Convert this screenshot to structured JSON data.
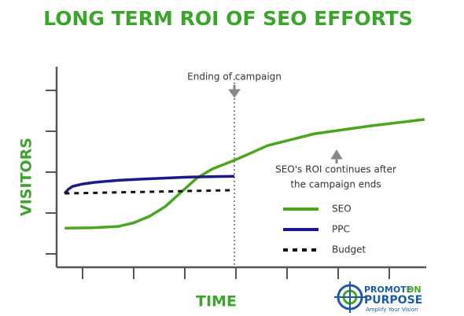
{
  "chart_data": {
    "type": "line",
    "title": "LONG TERM ROI OF SEO EFFORTS",
    "x_label": "TIME",
    "y_label": "VISITORS",
    "xlim": [
      0.5,
      7.7
    ],
    "ylim": [
      0.7,
      5.6
    ],
    "xticks": [
      1,
      2,
      3,
      4,
      5,
      6,
      7
    ],
    "yticks": [
      1,
      2,
      3,
      4,
      5
    ],
    "campaign_end_x": 3.97,
    "annotations": [
      {
        "text": "Ending of campaign"
      },
      {
        "lines": [
          "SEO's ROI continues after",
          "the campaign ends"
        ]
      }
    ],
    "legend": "right",
    "series": [
      {
        "name": "SEO",
        "color": "#4aa51f",
        "dashed": false,
        "x": [
          0.65,
          1.2,
          1.69,
          2.0,
          2.31,
          2.62,
          2.92,
          3.23,
          3.54,
          3.97,
          4.62,
          5.54,
          6.62,
          7.69
        ],
        "values": [
          1.63,
          1.64,
          1.67,
          1.76,
          1.92,
          2.16,
          2.5,
          2.85,
          3.08,
          3.29,
          3.65,
          3.94,
          4.13,
          4.29
        ]
      },
      {
        "name": "PPC",
        "color": "#1a1a8c",
        "dashed": false,
        "x": [
          0.65,
          0.72,
          0.8,
          1.0,
          1.23,
          1.7,
          2.15,
          3.08,
          3.97
        ],
        "values": [
          2.48,
          2.58,
          2.65,
          2.71,
          2.75,
          2.8,
          2.83,
          2.88,
          2.9
        ]
      },
      {
        "name": "Budget",
        "color": "#111111",
        "dashed": true,
        "x": [
          0.65,
          3.97
        ],
        "values": [
          2.48,
          2.56
        ]
      }
    ]
  },
  "logo": {
    "word1": "PROMOTE",
    "word2": "ON",
    "word3": "PURPOSE",
    "tagline": "Amplify Your Vision"
  }
}
